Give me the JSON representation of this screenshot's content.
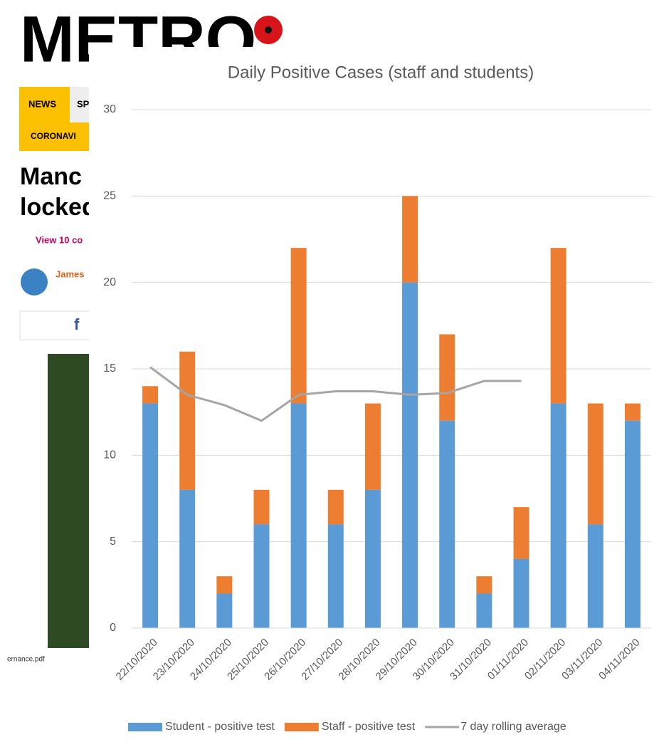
{
  "page": {
    "logo": "METRO",
    "nav": [
      "NEWS",
      "SP",
      "CORONAVI"
    ],
    "headline": [
      "Manc",
      "locked"
    ],
    "comments": "View 10 co",
    "author": "James",
    "share": "f",
    "caption": "ernance.pdf"
  },
  "chart_data": {
    "type": "bar",
    "stacked": true,
    "title": "Daily Positive Cases (staff and students)",
    "categories": [
      "22/10/2020",
      "23/10/2020",
      "24/10/2020",
      "25/10/2020",
      "26/10/2020",
      "27/10/2020",
      "28/10/2020",
      "29/10/2020",
      "30/10/2020",
      "31/10/2020",
      "01/11/2020",
      "02/11/2020",
      "03/11/2020",
      "04/11/2020"
    ],
    "series": [
      {
        "name": "Student - positive test",
        "color": "#5b9bd5",
        "type": "bar",
        "values": [
          13,
          8,
          2,
          6,
          13,
          6,
          8,
          20,
          12,
          2,
          4,
          13,
          6,
          12
        ]
      },
      {
        "name": "Staff - positive test",
        "color": "#ed7d31",
        "type": "bar",
        "values": [
          1,
          8,
          1,
          2,
          9,
          2,
          5,
          5,
          5,
          1,
          3,
          9,
          7,
          1
        ]
      },
      {
        "name": "7 day rolling average",
        "color": "#a5a5a5",
        "type": "line",
        "values": [
          15.1,
          13.5,
          12.9,
          12.0,
          13.5,
          13.7,
          13.7,
          13.5,
          13.6,
          14.3,
          14.3,
          null,
          null,
          null
        ]
      }
    ],
    "ylim": [
      0,
      30
    ],
    "yticks": [
      0,
      5,
      10,
      15,
      20,
      25,
      30
    ],
    "grid": true,
    "legend": "bottom"
  }
}
